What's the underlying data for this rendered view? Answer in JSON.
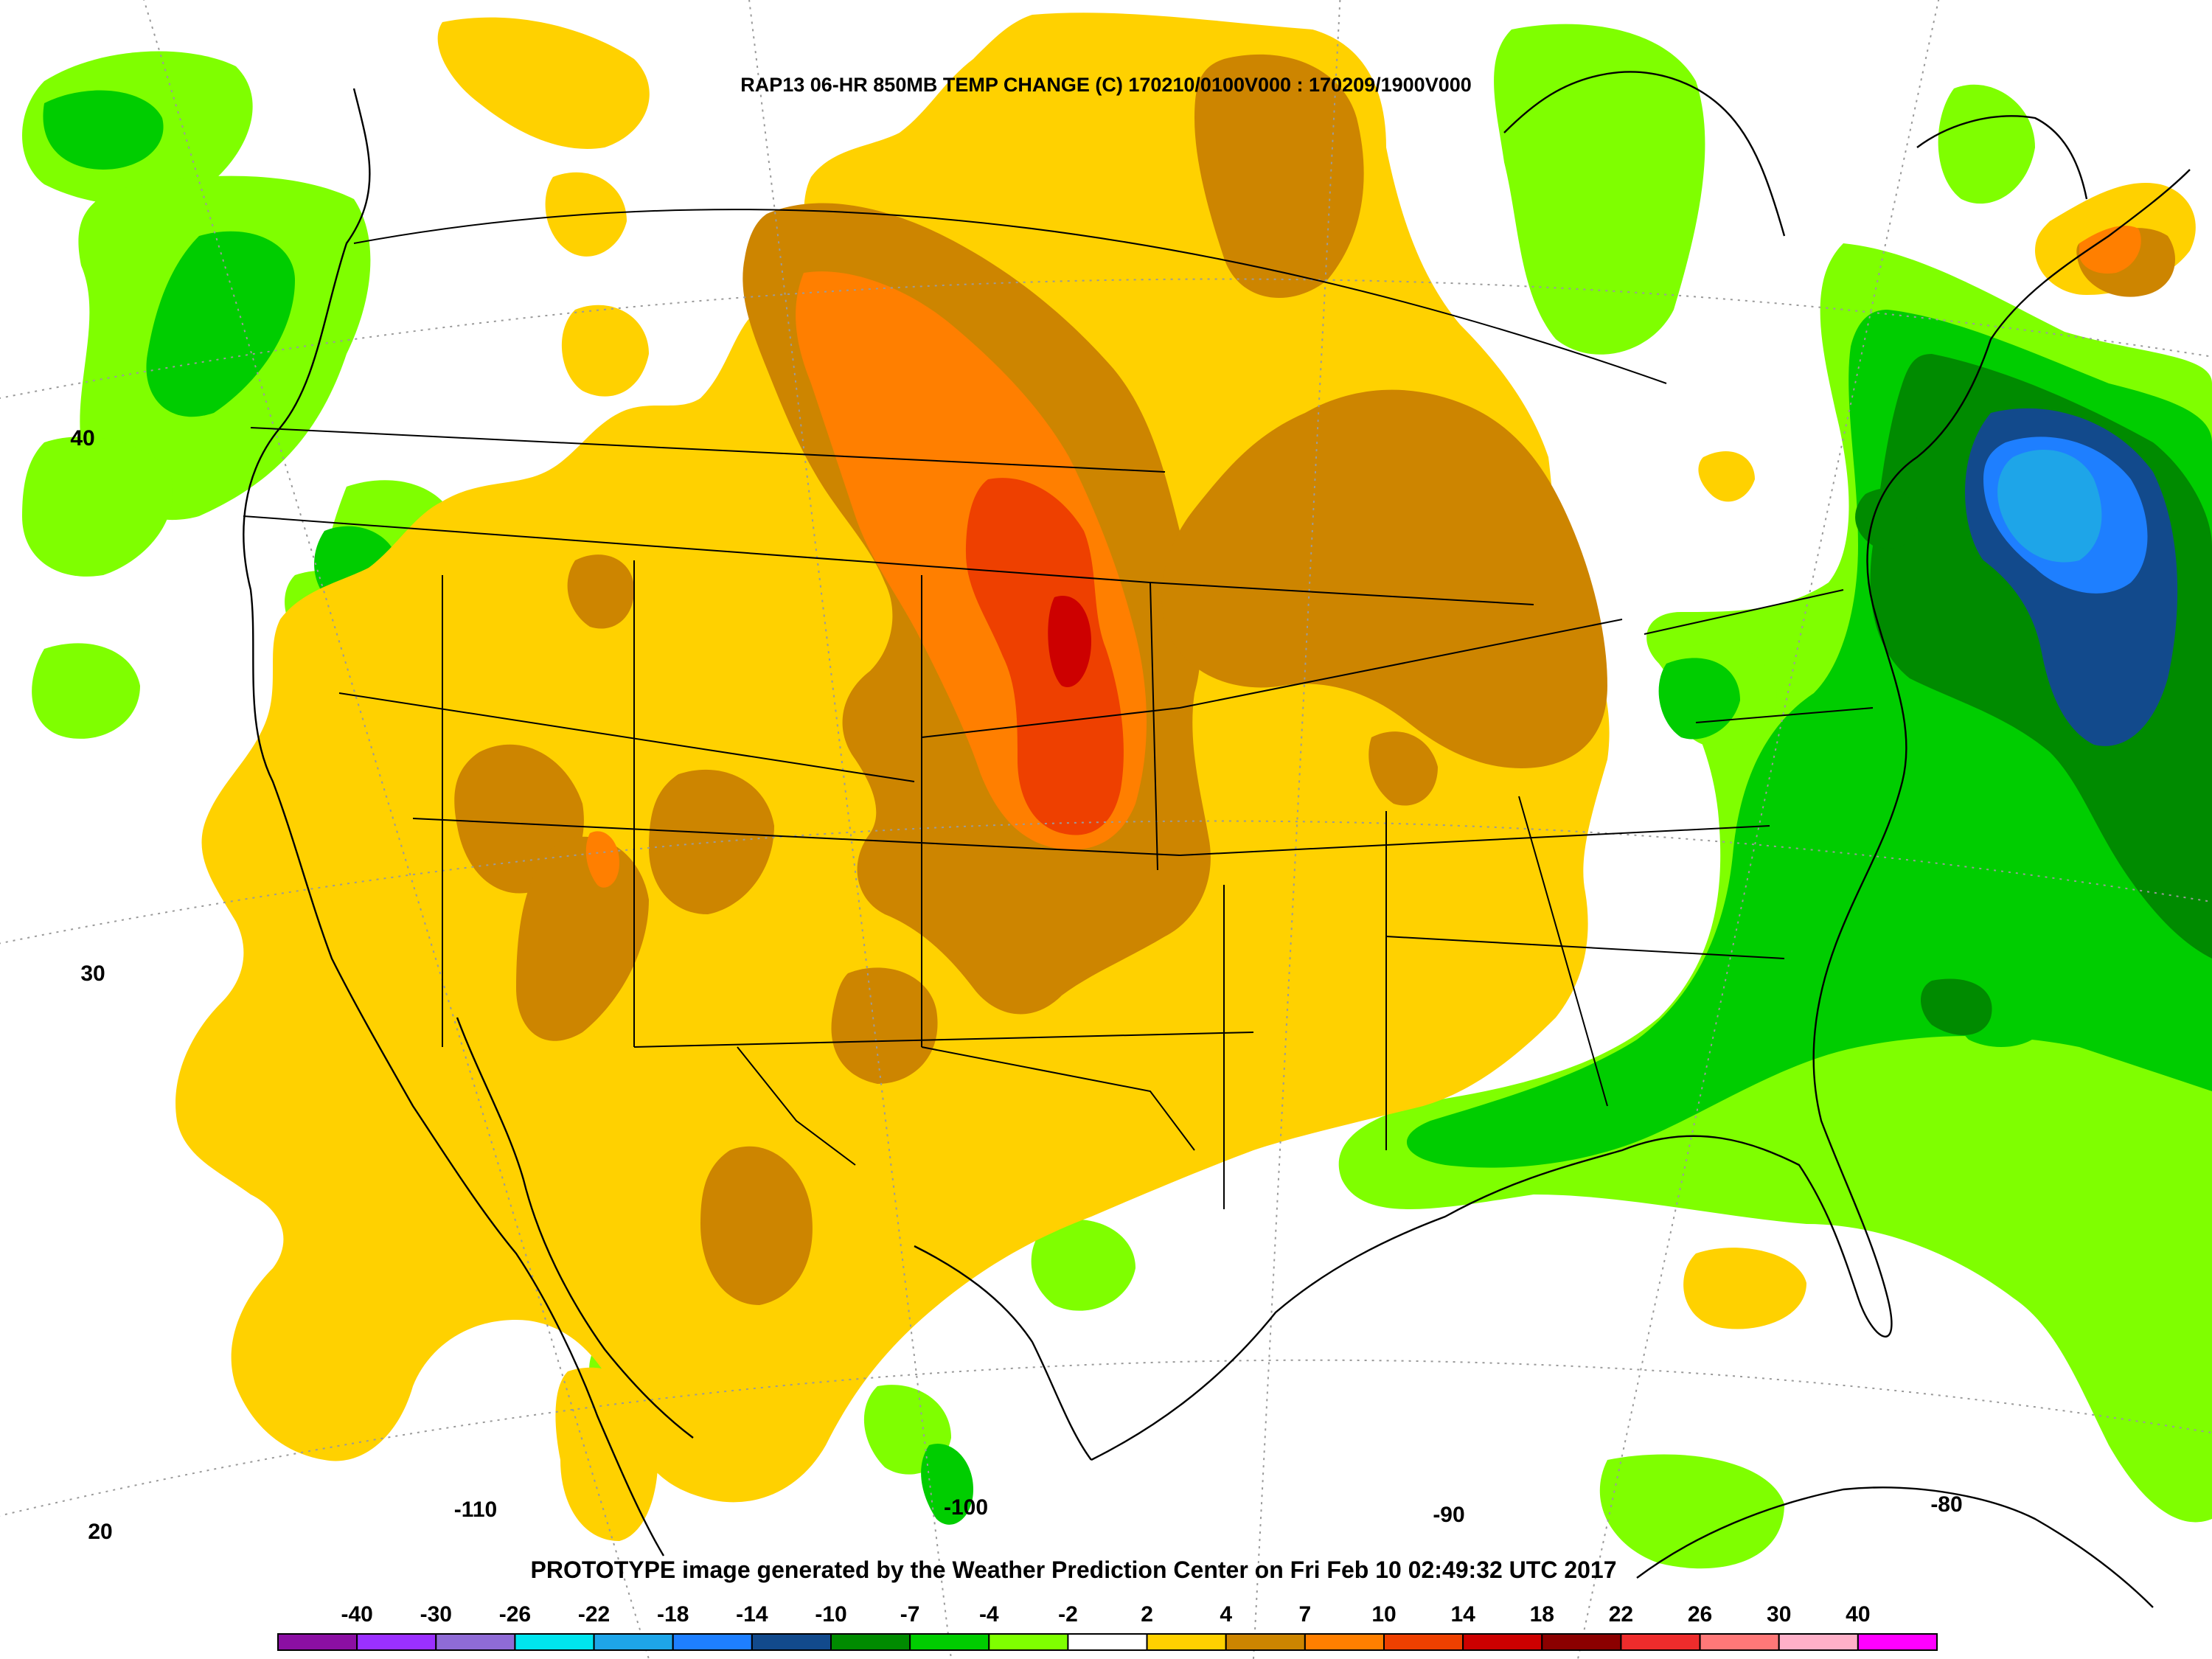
{
  "title": "RAP13 06-HR 850MB TEMP CHANGE (C) 170210/0100V000 : 170209/1900V000",
  "footer": "PROTOTYPE image generated by the Weather Prediction Center on Fri Feb 10 02:49:32 UTC 2017",
  "latitude_labels": [
    "40",
    "30",
    "20"
  ],
  "longitude_labels": [
    "-110",
    "-100",
    "-90",
    "-80"
  ],
  "legend": {
    "tick_labels": [
      "-40",
      "-30",
      "-26",
      "-22",
      "-18",
      "-14",
      "-10",
      "-7",
      "-4",
      "-2",
      "2",
      "4",
      "7",
      "10",
      "14",
      "18",
      "22",
      "26",
      "30",
      "40"
    ],
    "colors": [
      "#8b0fa3",
      "#9b30ff",
      "#8f6bd6",
      "#00e5ee",
      "#1ea5e8",
      "#1e7fff",
      "#124a8c",
      "#008b00",
      "#00cd00",
      "#7fff00",
      "#ffffff",
      "#ffd100",
      "#cd8500",
      "#ff7f00",
      "#ee4000",
      "#cd0000",
      "#8b0000",
      "#ee2c2c",
      "#ff7878",
      "#ffb0c8",
      "#ff00ff"
    ]
  },
  "units": "C"
}
